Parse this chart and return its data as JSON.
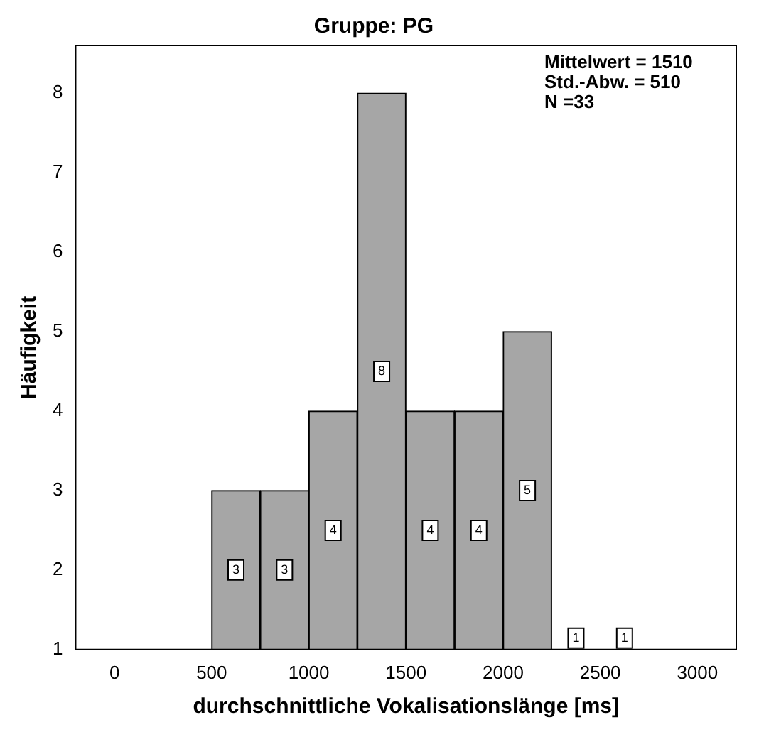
{
  "chart_data": {
    "type": "histogram",
    "title": "Gruppe: PG",
    "xlabel": "durchschnittliche Vokalisationslänge [ms]",
    "ylabel": "Häufigkeit",
    "bins": [
      500,
      750,
      1000,
      1250,
      1500,
      1750,
      2000,
      2250,
      2500,
      2750
    ],
    "values": [
      3,
      3,
      4,
      8,
      4,
      4,
      5,
      1,
      1
    ],
    "color": "#a6a6a6",
    "xlim": [
      -200,
      3200
    ],
    "xticks": [
      0,
      500,
      1000,
      1500,
      2000,
      2500,
      3000
    ],
    "ylim": [
      1,
      8.6
    ],
    "yticks": [
      1,
      2,
      3,
      4,
      5,
      6,
      7,
      8
    ],
    "data_labels": true,
    "grid": false,
    "legend": false,
    "annotations": [
      "Mittelwert = 1510",
      "Std.-Abw. = 510",
      "N =33"
    ]
  }
}
